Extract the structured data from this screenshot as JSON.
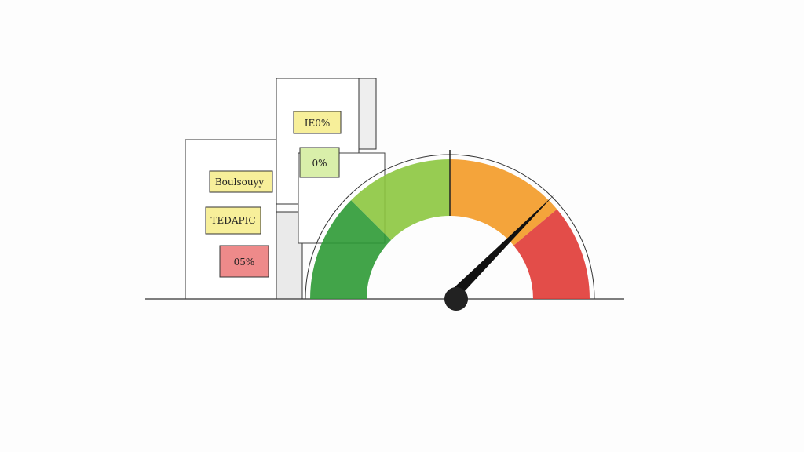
{
  "labels": {
    "top_box": "IE0%",
    "middle_box": "0%",
    "left_box_1": "Boulsouyy",
    "left_box_2": "TEDAPIC",
    "left_box_3": "05%"
  },
  "gauge": {
    "needle_fraction": 0.75,
    "segments": [
      {
        "color": "#2e9a35"
      },
      {
        "color": "#8cc63f"
      },
      {
        "color": "#f39a26"
      },
      {
        "color": "#e03a35"
      }
    ]
  },
  "colors": {
    "yellow_note": "#f7ef9a",
    "green_note": "#d9efaa",
    "red_note": "#ee8a8a"
  }
}
